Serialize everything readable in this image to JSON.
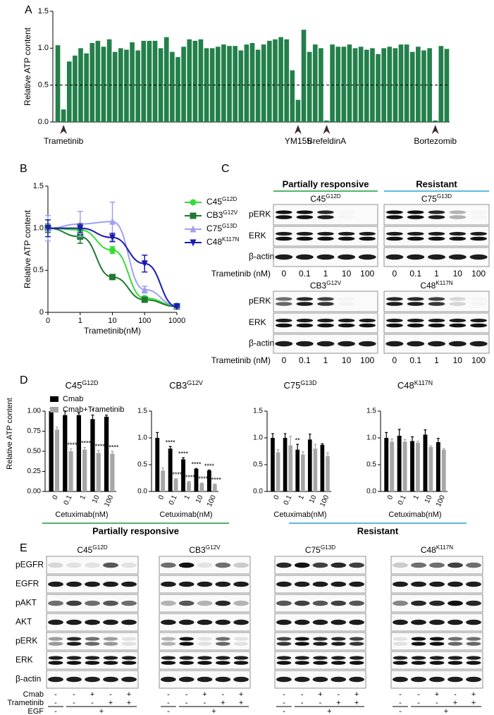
{
  "panel_labels": [
    "A",
    "B",
    "C",
    "D",
    "E"
  ],
  "chart_data": [
    {
      "type": "bar",
      "ylabel": "Relative ATP content",
      "categories": [
        null,
        "Trametinib",
        null,
        null,
        null,
        null,
        null,
        null,
        null,
        null,
        null,
        null,
        null,
        null,
        null,
        null,
        null,
        null,
        null,
        null,
        null,
        null,
        null,
        null,
        null,
        null,
        null,
        null,
        null,
        null,
        null,
        null,
        null,
        null,
        null,
        null,
        null,
        null,
        null,
        null,
        null,
        null,
        "YM155",
        null,
        null,
        null,
        null,
        "BrefeldinA",
        null,
        null,
        null,
        null,
        null,
        null,
        null,
        null,
        null,
        null,
        null,
        null,
        null,
        null,
        null,
        null,
        null,
        null,
        "Bortezomib",
        null,
        null
      ],
      "values": [
        1.04,
        0.17,
        0.82,
        0.9,
        1.0,
        0.93,
        1.07,
        1.1,
        1.02,
        1.12,
        0.95,
        1.0,
        0.98,
        1.08,
        0.97,
        1.1,
        1.1,
        1.1,
        1.0,
        1.15,
        0.95,
        0.88,
        1.02,
        1.12,
        1.1,
        1.12,
        1.0,
        1.0,
        1.02,
        1.05,
        1.03,
        1.03,
        0.97,
        1.05,
        1.07,
        0.98,
        1.05,
        1.1,
        1.12,
        1.15,
        1.12,
        0.7,
        0.3,
        1.25,
        0.95,
        1.05,
        1.0,
        0.02,
        1.05,
        1.02,
        1.02,
        1.05,
        1.0,
        1.02,
        0.98,
        1.0,
        0.92,
        1.0,
        1.02,
        1.0,
        1.05,
        1.05,
        0.95,
        1.02,
        0.97,
        1.0,
        0.02,
        1.03,
        0.99
      ],
      "color": "#23804a",
      "ylim": [
        0,
        1.5
      ],
      "yticks": [
        {
          "value": 0,
          "label": "0.0"
        },
        0.5,
        {
          "value": 1,
          "label": "1.0"
        },
        1.5
      ],
      "hline": 0.5
    },
    {
      "type": "line",
      "xlabel": "Trametinib(nM)",
      "ylabel": "Relative ATP content",
      "xscale": "log",
      "x": [
        0,
        1,
        10,
        100,
        1000
      ],
      "xlim": [
        0,
        1000
      ],
      "xticks": [
        0,
        1,
        10,
        100,
        1000
      ],
      "ylim": [
        0,
        1.5
      ],
      "yticks": [
        0,
        0.5,
        {
          "value": 1,
          "label": "1.0"
        },
        1.5
      ],
      "series": [
        {
          "name": "C45",
          "name_sup": "G12D",
          "color": "#33dd33",
          "marker": "circle",
          "values": [
            1.0,
            0.98,
            0.74,
            0.17,
            0.08
          ],
          "errors": [
            0.05,
            0.05,
            0.04,
            0.02,
            0.02
          ]
        },
        {
          "name": "CB3",
          "name_sup": "G12V",
          "color": "#1e7b32",
          "marker": "square",
          "values": [
            1.0,
            0.9,
            0.42,
            0.15,
            0.07
          ],
          "errors": [
            0.05,
            0.08,
            0.02,
            0.02,
            0.01
          ]
        },
        {
          "name": "C75",
          "name_sup": "G13D",
          "color": "#a0a0f0",
          "marker": "triangle",
          "values": [
            1.0,
            1.05,
            1.08,
            0.27,
            0.08
          ],
          "errors": [
            0.15,
            0.15,
            0.23,
            0.04,
            0.02
          ]
        },
        {
          "name": "C48",
          "name_sup": "K117N",
          "color": "#1c1cb0",
          "marker": "triangle-down",
          "values": [
            1.0,
            1.0,
            0.89,
            0.58,
            0.07
          ],
          "errors": [
            0.1,
            0.05,
            0.05,
            0.1,
            0.01
          ]
        }
      ]
    },
    {
      "type": "grouped_bar",
      "title": "C45",
      "title_sup": "G12D",
      "ylabel": "Relative ATP content",
      "xlabel": "Cetuximab(nM)",
      "legend": true,
      "categories": [
        "0",
        "0.1",
        "1",
        "10",
        "100"
      ],
      "ylim": [
        0,
        1
      ],
      "yticks": [
        {
          "value": 0,
          "label": "0.00"
        },
        {
          "value": 0.25,
          "label": "0.25"
        },
        {
          "value": 0.5,
          "label": "0.50"
        },
        {
          "value": 0.75,
          "label": "0.75"
        },
        {
          "value": 1,
          "label": "1.00"
        }
      ],
      "series": [
        {
          "name": "Cmab",
          "color": "#000000",
          "values": [
            1.0,
            0.95,
            0.95,
            0.9,
            0.93
          ],
          "errors": [
            0.03,
            0.05,
            0.03,
            0.05,
            0.02
          ],
          "stars": [
            null,
            null,
            null,
            "*",
            null
          ]
        },
        {
          "name": "Cmab+Trametinib",
          "color": "#a6a6a6",
          "values": [
            0.77,
            0.5,
            0.52,
            0.48,
            0.47
          ],
          "errors": [
            0.03,
            0.03,
            0.03,
            0.03,
            0.03
          ],
          "stars": [
            null,
            "****",
            "****",
            "****",
            "****"
          ]
        }
      ]
    },
    {
      "type": "grouped_bar",
      "title": "CB3",
      "title_sup": "G12V",
      "xlabel": "Cetuximab(nM)",
      "categories": [
        "0",
        "0.1",
        "1",
        "10",
        "100"
      ],
      "ylim": [
        0,
        1.5
      ],
      "yticks": [
        {
          "value": 0,
          "label": "0.0"
        },
        0.5,
        {
          "value": 1,
          "label": "1.0"
        },
        1.5
      ],
      "series": [
        {
          "color": "#000000",
          "values": [
            1.0,
            0.8,
            0.6,
            0.42,
            0.39
          ],
          "errors": [
            0.1,
            0.04,
            0.03,
            0.01,
            0.01
          ],
          "stars": [
            null,
            "****",
            "****",
            "****",
            "****"
          ]
        },
        {
          "color": "#a6a6a6",
          "values": [
            0.39,
            0.23,
            0.18,
            0.15,
            0.13
          ],
          "errors": [
            0.05,
            0.01,
            0.01,
            0.01,
            0.01
          ],
          "stars": [
            null,
            "****",
            "****",
            "****",
            "****"
          ]
        }
      ]
    },
    {
      "type": "grouped_bar",
      "title": "C75",
      "title_sup": "G13D",
      "xlabel": "Cetuximab(nM)",
      "categories": [
        "0",
        "0.1",
        "1",
        "10",
        "100"
      ],
      "ylim": [
        0,
        1.5
      ],
      "yticks": [
        {
          "value": 0,
          "label": "0.0"
        },
        0.5,
        {
          "value": 1,
          "label": "1.0"
        },
        1.5
      ],
      "series": [
        {
          "color": "#000000",
          "values": [
            1.0,
            1.0,
            0.78,
            0.97,
            0.87
          ],
          "errors": [
            0.08,
            0.08,
            0.1,
            0.1,
            0.02
          ],
          "stars": [
            null,
            null,
            "**",
            null,
            null
          ]
        },
        {
          "color": "#a6a6a6",
          "values": [
            0.73,
            0.86,
            0.69,
            0.8,
            0.66
          ],
          "errors": [
            0.05,
            0.17,
            0.05,
            0.08,
            0.06
          ],
          "stars": [
            null,
            null,
            null,
            null,
            null
          ]
        }
      ]
    },
    {
      "type": "grouped_bar",
      "title": "C48",
      "title_sup": "K117N",
      "xlabel": "Cetuximab(nM)",
      "categories": [
        "0",
        "0.1",
        "1",
        "10",
        "100"
      ],
      "ylim": [
        0,
        1.5
      ],
      "yticks": [
        {
          "value": 0,
          "label": "0.0"
        },
        0.5,
        {
          "value": 1,
          "label": "1.0"
        },
        1.5
      ],
      "series": [
        {
          "color": "#000000",
          "values": [
            1.0,
            1.04,
            0.94,
            1.06,
            0.92
          ],
          "errors": [
            0.1,
            0.12,
            0.08,
            0.09,
            0.07
          ],
          "stars": [
            null,
            null,
            null,
            null,
            null
          ]
        },
        {
          "color": "#a6a6a6",
          "values": [
            0.93,
            0.93,
            0.91,
            0.83,
            0.78
          ],
          "errors": [
            0.05,
            0.04,
            0.03,
            0.02,
            0.02
          ],
          "stars": [
            null,
            null,
            null,
            null,
            null
          ]
        }
      ]
    }
  ],
  "panel_c": {
    "headers": [
      {
        "text": "Partially responsive",
        "color": "#1a9a3a"
      },
      {
        "text": "Resistant",
        "color": "#2aa0d8"
      }
    ],
    "blots": [
      {
        "cell": "C45",
        "sup": "G12D"
      },
      {
        "cell": "C75",
        "sup": "G13D"
      },
      {
        "cell": "CB3",
        "sup": "G12V"
      },
      {
        "cell": "C48",
        "sup": "K117N"
      }
    ],
    "rows": [
      "pERK",
      "ERK",
      "β-actin"
    ],
    "dose_label": "Trametinib (nM)",
    "lanes": [
      "0",
      "0.1",
      "1",
      "10",
      "100"
    ]
  },
  "panel_d_groups": [
    {
      "text": "Partially responsive",
      "color": "#1a9a3a"
    },
    {
      "text": "Resistant",
      "color": "#2aa0d8"
    }
  ],
  "panel_e": {
    "blots": [
      {
        "cell": "C45",
        "sup": "G12D"
      },
      {
        "cell": "CB3",
        "sup": "G12V"
      },
      {
        "cell": "C75",
        "sup": "G13D"
      },
      {
        "cell": "C48",
        "sup": "K117N"
      }
    ],
    "rows": [
      "pEGFR",
      "EGFR",
      "pAKT",
      "AKT",
      "pERK",
      "ERK",
      "β-actin"
    ],
    "treatments": [
      {
        "name": "Cmab",
        "signs": [
          "-",
          "-",
          "+",
          "-",
          "+"
        ]
      },
      {
        "name": "Trametinib",
        "signs": [
          "-",
          "-",
          "-",
          "+",
          "+"
        ]
      }
    ],
    "egf": {
      "name": "EGF",
      "signs": [
        "-",
        "+"
      ]
    }
  }
}
